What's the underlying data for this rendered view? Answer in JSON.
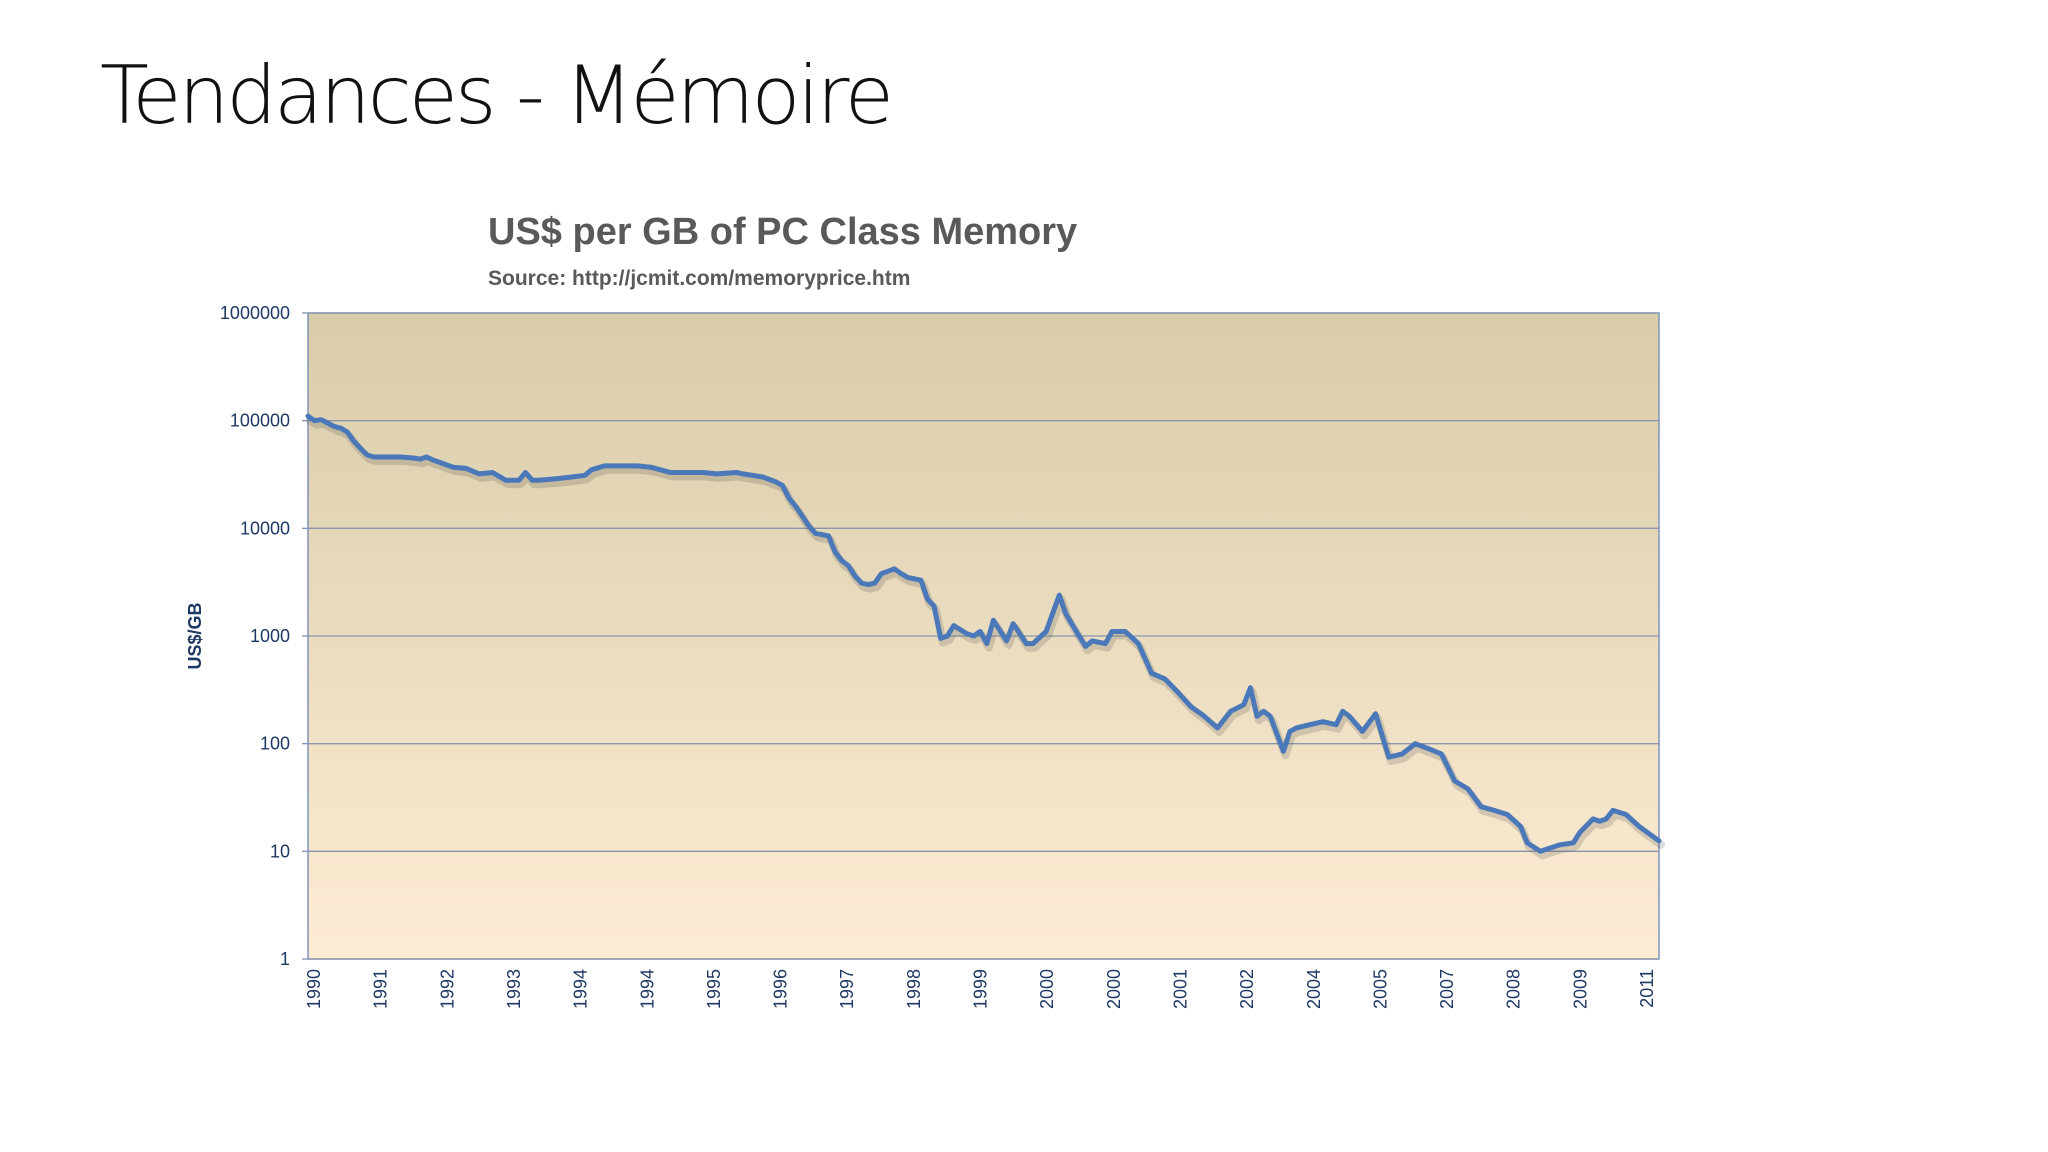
{
  "slide": {
    "title": "Tendances - Mémoire"
  },
  "chart_data": {
    "type": "line",
    "title": "US$ per GB of PC Class Memory",
    "subtitle": "Source:  http://jcmit.com/memoryprice.htm",
    "xlabel": "",
    "ylabel": "US$/GB",
    "y_scale": "log",
    "ylim": [
      1,
      1000000
    ],
    "grid": true,
    "legend": "none",
    "line_color": "#4a78b8",
    "plot_background_top": "#d8ccaa",
    "plot_background_bottom": "#fdecd4",
    "y_ticks": [
      "1000000",
      "100000",
      "10000",
      "1000",
      "100",
      "10",
      "1"
    ],
    "x_ticks": [
      "1990",
      "1991",
      "1992",
      "1993",
      "1994",
      "1994",
      "1995",
      "1996",
      "1997",
      "1998",
      "1999",
      "2000",
      "2000",
      "2001",
      "2002",
      "2004",
      "2005",
      "2007",
      "2008",
      "2009",
      "2011"
    ],
    "x_range": [
      0,
      20.5
    ],
    "series": [
      {
        "x": [
          0,
          0.1,
          0.2,
          0.3,
          0.4,
          0.5,
          0.6,
          0.7,
          0.8,
          0.9,
          1.0,
          1.2,
          1.4,
          1.6,
          1.7,
          1.8,
          1.9,
          2.0,
          2.2,
          2.4,
          2.6,
          2.8,
          3.0,
          3.2,
          3.3,
          3.4,
          3.5,
          3.8,
          4.0,
          4.2,
          4.3,
          4.5,
          4.8,
          5.0,
          5.2,
          5.5,
          5.8,
          6.0,
          6.2,
          6.5,
          6.6,
          6.9,
          7.1,
          7.2,
          7.3,
          7.4,
          7.5,
          7.6,
          7.7,
          7.9,
          8.0,
          8.1,
          8.2,
          8.3,
          8.4,
          8.5,
          8.6,
          8.7,
          8.9,
          9.0,
          9.1,
          9.3,
          9.4,
          9.5,
          9.6,
          9.7,
          9.8,
          10.0,
          10.1,
          10.2,
          10.3,
          10.4,
          10.6,
          10.7,
          10.9,
          11.0,
          11.2,
          11.4,
          11.5,
          11.7,
          11.8,
          11.9,
          12.1,
          12.2,
          12.4,
          12.6,
          12.8,
          13.0,
          13.2,
          13.4,
          13.6,
          13.8,
          14.0,
          14.2,
          14.3,
          14.4,
          14.5,
          14.6,
          14.8,
          14.9,
          15.0,
          15.2,
          15.4,
          15.6,
          15.7,
          15.8,
          16.0,
          16.2,
          16.4,
          16.6,
          16.8,
          17.0,
          17.2,
          17.4,
          17.6,
          17.8,
          18.0,
          18.2,
          18.4,
          18.5,
          18.7,
          18.9,
          19.0,
          19.2,
          19.3,
          19.5,
          19.6,
          19.7,
          19.8,
          20.0,
          20.2,
          20.5
        ],
        "y": [
          110000,
          100000,
          102000,
          95000,
          88000,
          85000,
          78000,
          64000,
          55000,
          48000,
          46000,
          46000,
          46000,
          45000,
          44000,
          46000,
          43000,
          41000,
          37000,
          36000,
          32000,
          33000,
          28000,
          28000,
          33000,
          28000,
          28000,
          29000,
          30000,
          31000,
          35000,
          38000,
          38000,
          38000,
          37000,
          33000,
          33000,
          33000,
          32000,
          33000,
          32000,
          30000,
          27000,
          25000,
          19000,
          16000,
          13000,
          10500,
          9000,
          8500,
          6000,
          5000,
          4500,
          3600,
          3100,
          3000,
          3100,
          3800,
          4200,
          3800,
          3500,
          3300,
          2200,
          1900,
          950,
          1000,
          1250,
          1050,
          1000,
          1100,
          850,
          1400,
          900,
          1300,
          850,
          850,
          1100,
          2400,
          1600,
          1000,
          800,
          900,
          850,
          1100,
          1100,
          850,
          450,
          400,
          300,
          220,
          180,
          140,
          200,
          230,
          330,
          180,
          200,
          180,
          85,
          130,
          140,
          150,
          160,
          150,
          200,
          180,
          130,
          190,
          75,
          80,
          100,
          90,
          80,
          45,
          38,
          26,
          24,
          22,
          17,
          12,
          10,
          11,
          11.5,
          12,
          15,
          20,
          19,
          20,
          24,
          22,
          17,
          12.5
        ]
      }
    ]
  }
}
